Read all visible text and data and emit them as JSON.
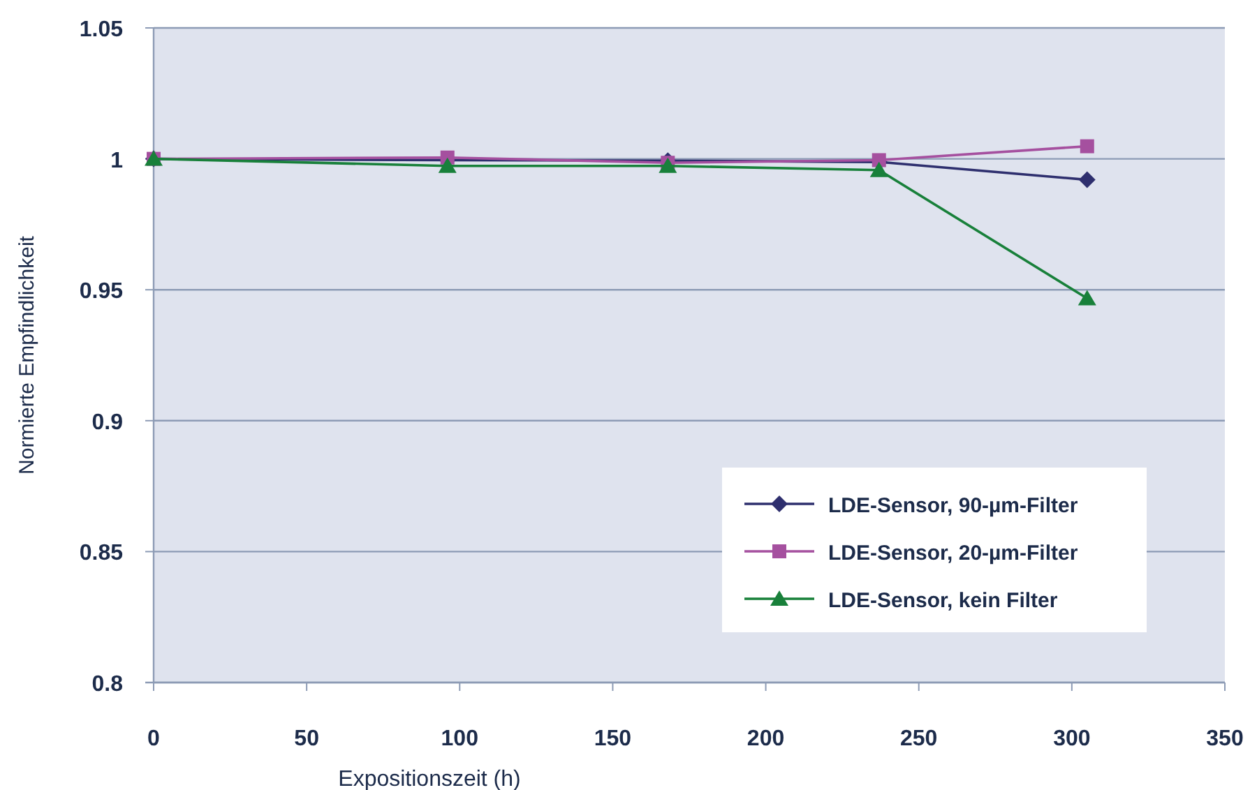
{
  "chart_data": {
    "type": "line",
    "xlabel": "Expositionszeit (h)",
    "ylabel": "Normierte Empfindlichkeit",
    "x": [
      0,
      96,
      168,
      237,
      305
    ],
    "series": [
      {
        "name": "LDE-Sensor, 90-µm-Filter",
        "color": "#2e2f6e",
        "marker": "diamond",
        "values": [
          1,
          0.9995,
          0.9993,
          0.9988,
          0.992
        ]
      },
      {
        "name": "LDE-Sensor, 20-µm-Filter",
        "color": "#a5509f",
        "marker": "square",
        "values": [
          1,
          1.0005,
          0.9985,
          0.9995,
          1.0048
        ]
      },
      {
        "name": "LDE-Sensor, kein Filter",
        "color": "#18803a",
        "marker": "triangle",
        "values": [
          1,
          0.9973,
          0.9973,
          0.9957,
          0.9467
        ]
      }
    ],
    "xlim": [
      0,
      350
    ],
    "xticks": [
      0,
      50,
      100,
      150,
      200,
      250,
      300,
      350
    ],
    "ylim": [
      0.8,
      1.05
    ],
    "yticks": [
      {
        "value": 0.8,
        "label": "0.8"
      },
      {
        "value": 0.85,
        "label": "0.85"
      },
      {
        "value": 0.9,
        "label": "0.9"
      },
      {
        "value": 0.95,
        "label": "0.95"
      },
      {
        "value": 1,
        "label": "1"
      },
      {
        "value": 1.05,
        "label": "1.05"
      }
    ],
    "grid": "y",
    "legend": "bottom right",
    "line_style": "solid"
  }
}
